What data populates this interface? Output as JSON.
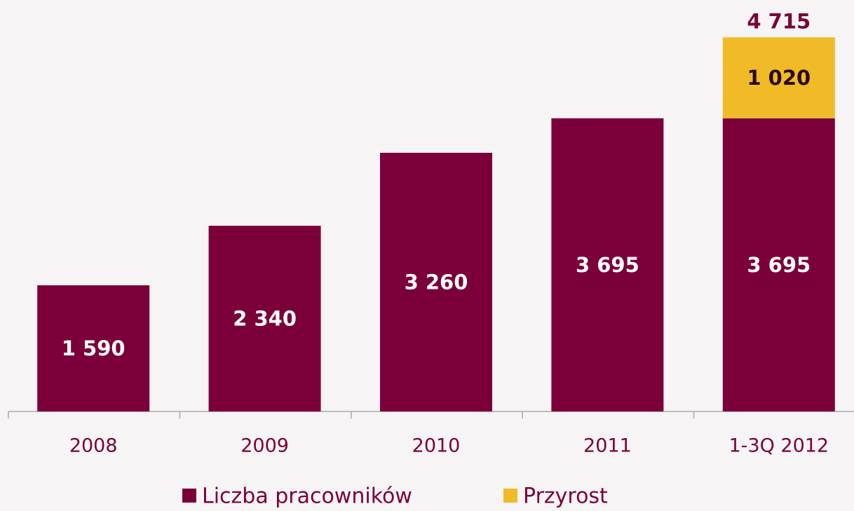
{
  "chart_data": {
    "type": "stacked-bar",
    "categories": [
      "2008",
      "2009",
      "2010",
      "2011",
      "1-3Q 2012"
    ],
    "series": [
      {
        "name": "Liczba pracowników",
        "color": "#7b003a",
        "values": [
          1590,
          2340,
          3260,
          3695,
          3695
        ],
        "value_labels": [
          "1 590",
          "2 340",
          "3 260",
          "3 695",
          "3 695"
        ]
      },
      {
        "name": "Przyrost",
        "color": "#f1bb28",
        "values": [
          null,
          null,
          null,
          null,
          1020
        ],
        "value_labels": [
          null,
          null,
          null,
          null,
          "1 020"
        ]
      }
    ],
    "totals": [
      null,
      null,
      null,
      null,
      4715
    ],
    "total_labels": [
      null,
      null,
      null,
      null,
      "4 715"
    ],
    "ylim": [
      0,
      5000
    ]
  }
}
